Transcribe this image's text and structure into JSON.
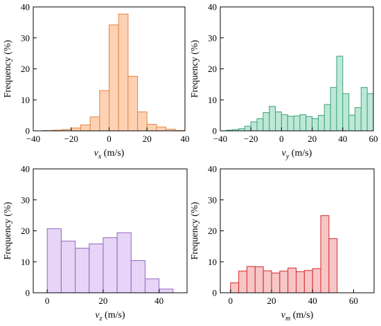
{
  "chart_data": [
    {
      "id": "vx",
      "type": "histogram",
      "ylabel": "Frequency (%)",
      "xlabel_var": "v",
      "xlabel_sub": "x",
      "xlabel_unit": " (m/s)",
      "xlim": [
        -40,
        40
      ],
      "ylim": [
        0,
        40
      ],
      "xticks": [
        -40,
        -20,
        0,
        20,
        40
      ],
      "yticks": [
        0,
        10,
        20,
        30,
        40
      ],
      "fill": "#fdd2b4",
      "stroke": "#e8823e",
      "bins": [
        {
          "x0": -35,
          "x1": -30,
          "value": 0.1
        },
        {
          "x0": -30,
          "x1": -25,
          "value": 0.2
        },
        {
          "x0": -25,
          "x1": -20,
          "value": 0.4
        },
        {
          "x0": -20,
          "x1": -15,
          "value": 0.9
        },
        {
          "x0": -15,
          "x1": -10,
          "value": 1.9
        },
        {
          "x0": -10,
          "x1": -5,
          "value": 4.5
        },
        {
          "x0": -5,
          "x1": 0,
          "value": 13.0
        },
        {
          "x0": 0,
          "x1": 5,
          "value": 34.2
        },
        {
          "x0": 5,
          "x1": 10,
          "value": 37.7
        },
        {
          "x0": 10,
          "x1": 15,
          "value": 17.6
        },
        {
          "x0": 15,
          "x1": 20,
          "value": 6.1
        },
        {
          "x0": 20,
          "x1": 25,
          "value": 2.1
        },
        {
          "x0": 25,
          "x1": 30,
          "value": 1.2
        },
        {
          "x0": 30,
          "x1": 35,
          "value": 0.5
        },
        {
          "x0": 35,
          "x1": 40,
          "value": 0.1
        }
      ]
    },
    {
      "id": "vy",
      "type": "histogram",
      "ylabel": "Frequency (%)",
      "xlabel_var": "v",
      "xlabel_sub": "y",
      "xlabel_unit": " (m/s)",
      "xlim": [
        -40,
        60
      ],
      "ylim": [
        0,
        40
      ],
      "xticks": [
        -40,
        -20,
        0,
        20,
        40,
        60
      ],
      "yticks": [
        0,
        10,
        20,
        30,
        40
      ],
      "fill": "#bde8d7",
      "stroke": "#3aa37a",
      "bins": [
        {
          "x0": -36,
          "x1": -32,
          "value": 0.2
        },
        {
          "x0": -32,
          "x1": -28,
          "value": 0.4
        },
        {
          "x0": -28,
          "x1": -24,
          "value": 0.7
        },
        {
          "x0": -24,
          "x1": -20,
          "value": 1.5
        },
        {
          "x0": -20,
          "x1": -16,
          "value": 2.9
        },
        {
          "x0": -16,
          "x1": -12,
          "value": 3.9
        },
        {
          "x0": -12,
          "x1": -8,
          "value": 5.9
        },
        {
          "x0": -8,
          "x1": -4,
          "value": 7.9
        },
        {
          "x0": -4,
          "x1": 0,
          "value": 6.1
        },
        {
          "x0": 0,
          "x1": 4,
          "value": 5.2
        },
        {
          "x0": 4,
          "x1": 8,
          "value": 4.7
        },
        {
          "x0": 8,
          "x1": 12,
          "value": 4.8
        },
        {
          "x0": 12,
          "x1": 16,
          "value": 5.2
        },
        {
          "x0": 16,
          "x1": 20,
          "value": 4.6
        },
        {
          "x0": 20,
          "x1": 24,
          "value": 3.9
        },
        {
          "x0": 24,
          "x1": 28,
          "value": 5.0
        },
        {
          "x0": 28,
          "x1": 32,
          "value": 8.5
        },
        {
          "x0": 32,
          "x1": 36,
          "value": 14.0
        },
        {
          "x0": 36,
          "x1": 40,
          "value": 24.1
        },
        {
          "x0": 40,
          "x1": 44,
          "value": 12.0
        },
        {
          "x0": 44,
          "x1": 48,
          "value": 5.1
        },
        {
          "x0": 48,
          "x1": 52,
          "value": 7.5
        },
        {
          "x0": 52,
          "x1": 56,
          "value": 14.0
        },
        {
          "x0": 56,
          "x1": 60,
          "value": 12.0
        }
      ]
    },
    {
      "id": "vz",
      "type": "histogram",
      "ylabel": "Frequency (%)",
      "xlabel_var": "v",
      "xlabel_sub": "z",
      "xlabel_unit": " (m/s)",
      "xlim": [
        -5,
        50
      ],
      "ylim": [
        0,
        40
      ],
      "xticks": [
        0,
        20,
        40
      ],
      "yticks": [
        0,
        10,
        20,
        30,
        40
      ],
      "fill": "#e6d5f7",
      "stroke": "#9467bd",
      "bins": [
        {
          "x0": 0,
          "x1": 5,
          "value": 20.7
        },
        {
          "x0": 5,
          "x1": 10,
          "value": 16.7
        },
        {
          "x0": 10,
          "x1": 15,
          "value": 14.4
        },
        {
          "x0": 15,
          "x1": 20,
          "value": 15.8
        },
        {
          "x0": 20,
          "x1": 25,
          "value": 17.8
        },
        {
          "x0": 25,
          "x1": 30,
          "value": 19.4
        },
        {
          "x0": 30,
          "x1": 35,
          "value": 10.4
        },
        {
          "x0": 35,
          "x1": 40,
          "value": 4.5
        },
        {
          "x0": 40,
          "x1": 45,
          "value": 1.2
        }
      ]
    },
    {
      "id": "vm",
      "type": "histogram",
      "ylabel": "Frequency (%)",
      "xlabel_var": "v",
      "xlabel_sub": "m",
      "xlabel_unit": " (m/s)",
      "xlim": [
        -5,
        70
      ],
      "ylim": [
        0,
        40
      ],
      "xticks": [
        0,
        20,
        40,
        60
      ],
      "yticks": [
        0,
        10,
        20,
        30,
        40
      ],
      "fill": "#f7c6c6",
      "stroke": "#d62728",
      "bins": [
        {
          "x0": 0,
          "x1": 4,
          "value": 3.2
        },
        {
          "x0": 4,
          "x1": 8,
          "value": 7.0
        },
        {
          "x0": 8,
          "x1": 12,
          "value": 8.5
        },
        {
          "x0": 12,
          "x1": 16,
          "value": 8.4
        },
        {
          "x0": 16,
          "x1": 20,
          "value": 7.1
        },
        {
          "x0": 20,
          "x1": 24,
          "value": 6.4
        },
        {
          "x0": 24,
          "x1": 28,
          "value": 7.0
        },
        {
          "x0": 28,
          "x1": 32,
          "value": 8.0
        },
        {
          "x0": 32,
          "x1": 36,
          "value": 6.8
        },
        {
          "x0": 36,
          "x1": 40,
          "value": 7.2
        },
        {
          "x0": 40,
          "x1": 44,
          "value": 7.8
        },
        {
          "x0": 44,
          "x1": 48,
          "value": 24.9
        },
        {
          "x0": 48,
          "x1": 52,
          "value": 17.5
        }
      ]
    }
  ]
}
